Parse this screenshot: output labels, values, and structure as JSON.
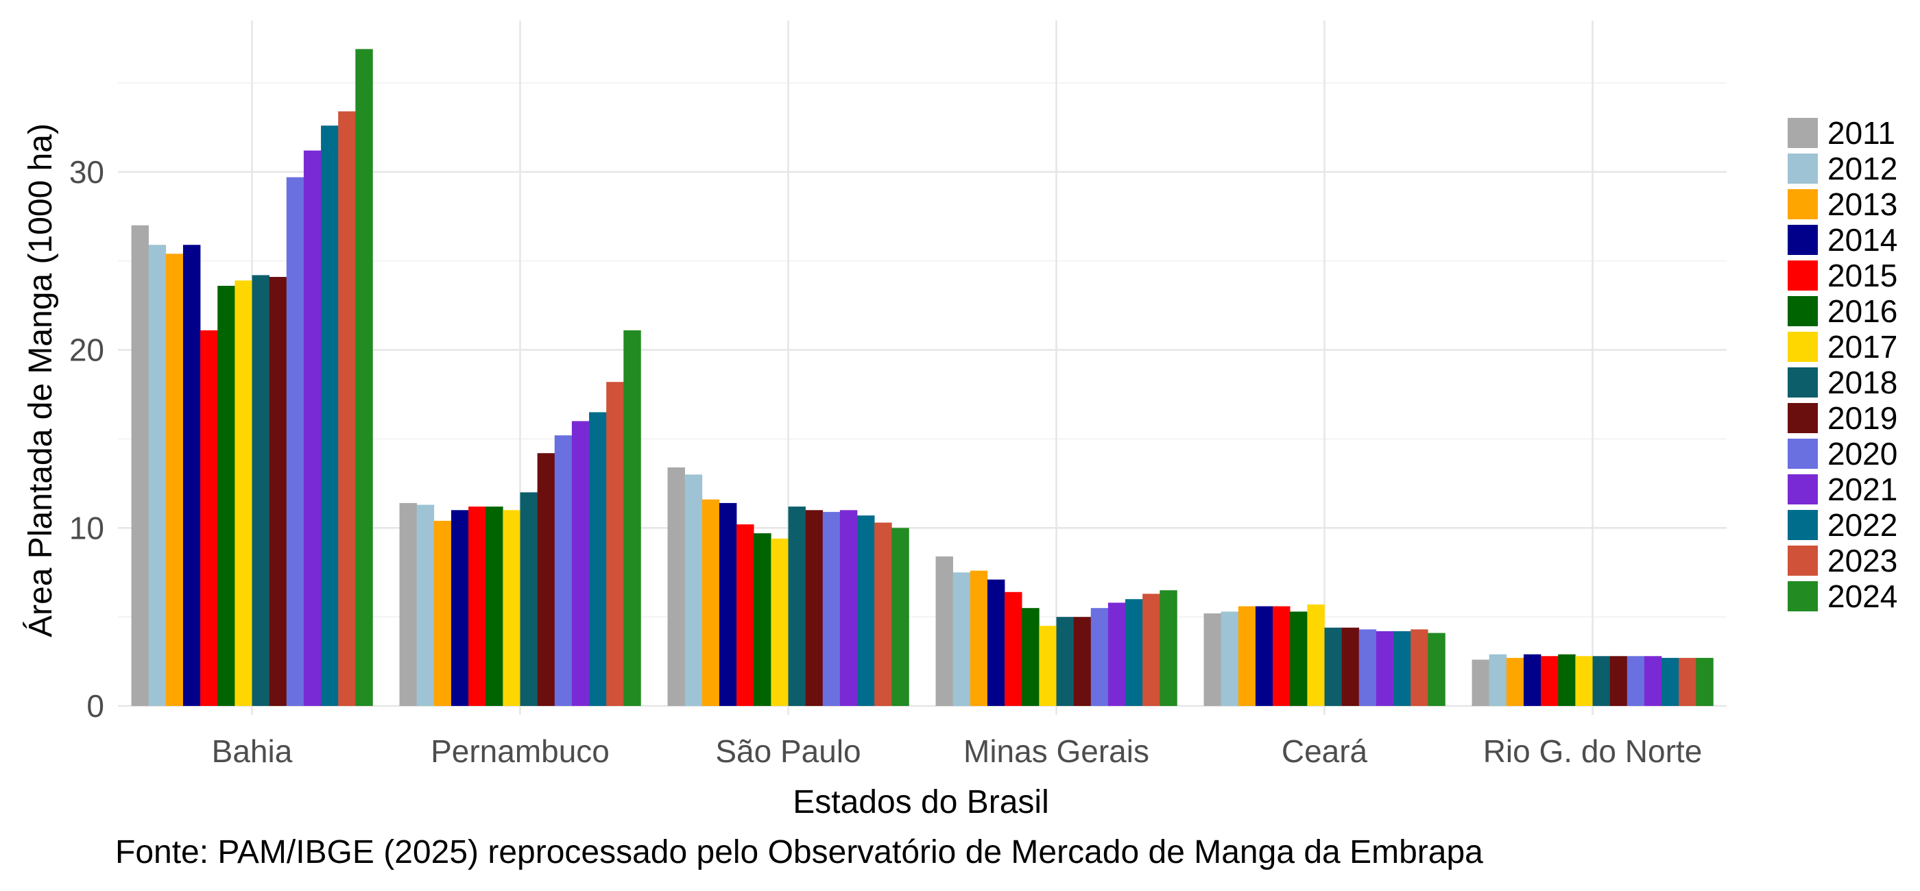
{
  "chart_data": {
    "type": "bar",
    "title": "",
    "xlabel": "Estados do Brasil",
    "ylabel": "Área Plantada de Manga (1000 ha)",
    "caption": "Fonte: PAM/IBGE (2025) reprocessado pelo Observatório de Mercado de Manga da Embrapa",
    "ylim": [
      -0.5,
      38.5
    ],
    "yticks": [
      0,
      10,
      20,
      30
    ],
    "grid": true,
    "legend_position": "right",
    "categories": [
      "Bahia",
      "Pernambuco",
      "São Paulo",
      "Minas Gerais",
      "Ceará",
      "Rio G. do Norte"
    ],
    "series": [
      {
        "name": "2011",
        "color": "#A9A9A9",
        "values": [
          27.0,
          11.4,
          13.4,
          8.4,
          5.2,
          2.6
        ]
      },
      {
        "name": "2012",
        "color": "#9DC3D4",
        "values": [
          25.9,
          11.3,
          13.0,
          7.5,
          5.3,
          2.9
        ]
      },
      {
        "name": "2013",
        "color": "#FFA500",
        "values": [
          25.4,
          10.4,
          11.6,
          7.6,
          5.6,
          2.7
        ]
      },
      {
        "name": "2014",
        "color": "#00008B",
        "values": [
          25.9,
          11.0,
          11.4,
          7.1,
          5.6,
          2.9
        ]
      },
      {
        "name": "2015",
        "color": "#FF0000",
        "values": [
          21.1,
          11.2,
          10.2,
          6.4,
          5.6,
          2.8
        ]
      },
      {
        "name": "2016",
        "color": "#006400",
        "values": [
          23.6,
          11.2,
          9.7,
          5.5,
          5.3,
          2.9
        ]
      },
      {
        "name": "2017",
        "color": "#FFD700",
        "values": [
          23.9,
          11.0,
          9.4,
          4.5,
          5.7,
          2.8
        ]
      },
      {
        "name": "2018",
        "color": "#0D5E6B",
        "values": [
          24.2,
          12.0,
          11.2,
          5.0,
          4.4,
          2.8
        ]
      },
      {
        "name": "2019",
        "color": "#6B0E0E",
        "values": [
          24.1,
          14.2,
          11.0,
          5.0,
          4.4,
          2.8
        ]
      },
      {
        "name": "2020",
        "color": "#6A70E0",
        "values": [
          29.7,
          15.2,
          10.9,
          5.5,
          4.3,
          2.8
        ]
      },
      {
        "name": "2021",
        "color": "#7A2AD4",
        "values": [
          31.2,
          16.0,
          11.0,
          5.8,
          4.2,
          2.8
        ]
      },
      {
        "name": "2022",
        "color": "#006D8C",
        "values": [
          32.6,
          16.5,
          10.7,
          6.0,
          4.2,
          2.7
        ]
      },
      {
        "name": "2023",
        "color": "#D05238",
        "values": [
          33.4,
          18.2,
          10.3,
          6.3,
          4.3,
          2.7
        ]
      },
      {
        "name": "2024",
        "color": "#228B22",
        "values": [
          36.9,
          21.1,
          10.0,
          6.5,
          4.1,
          2.7
        ]
      }
    ]
  }
}
